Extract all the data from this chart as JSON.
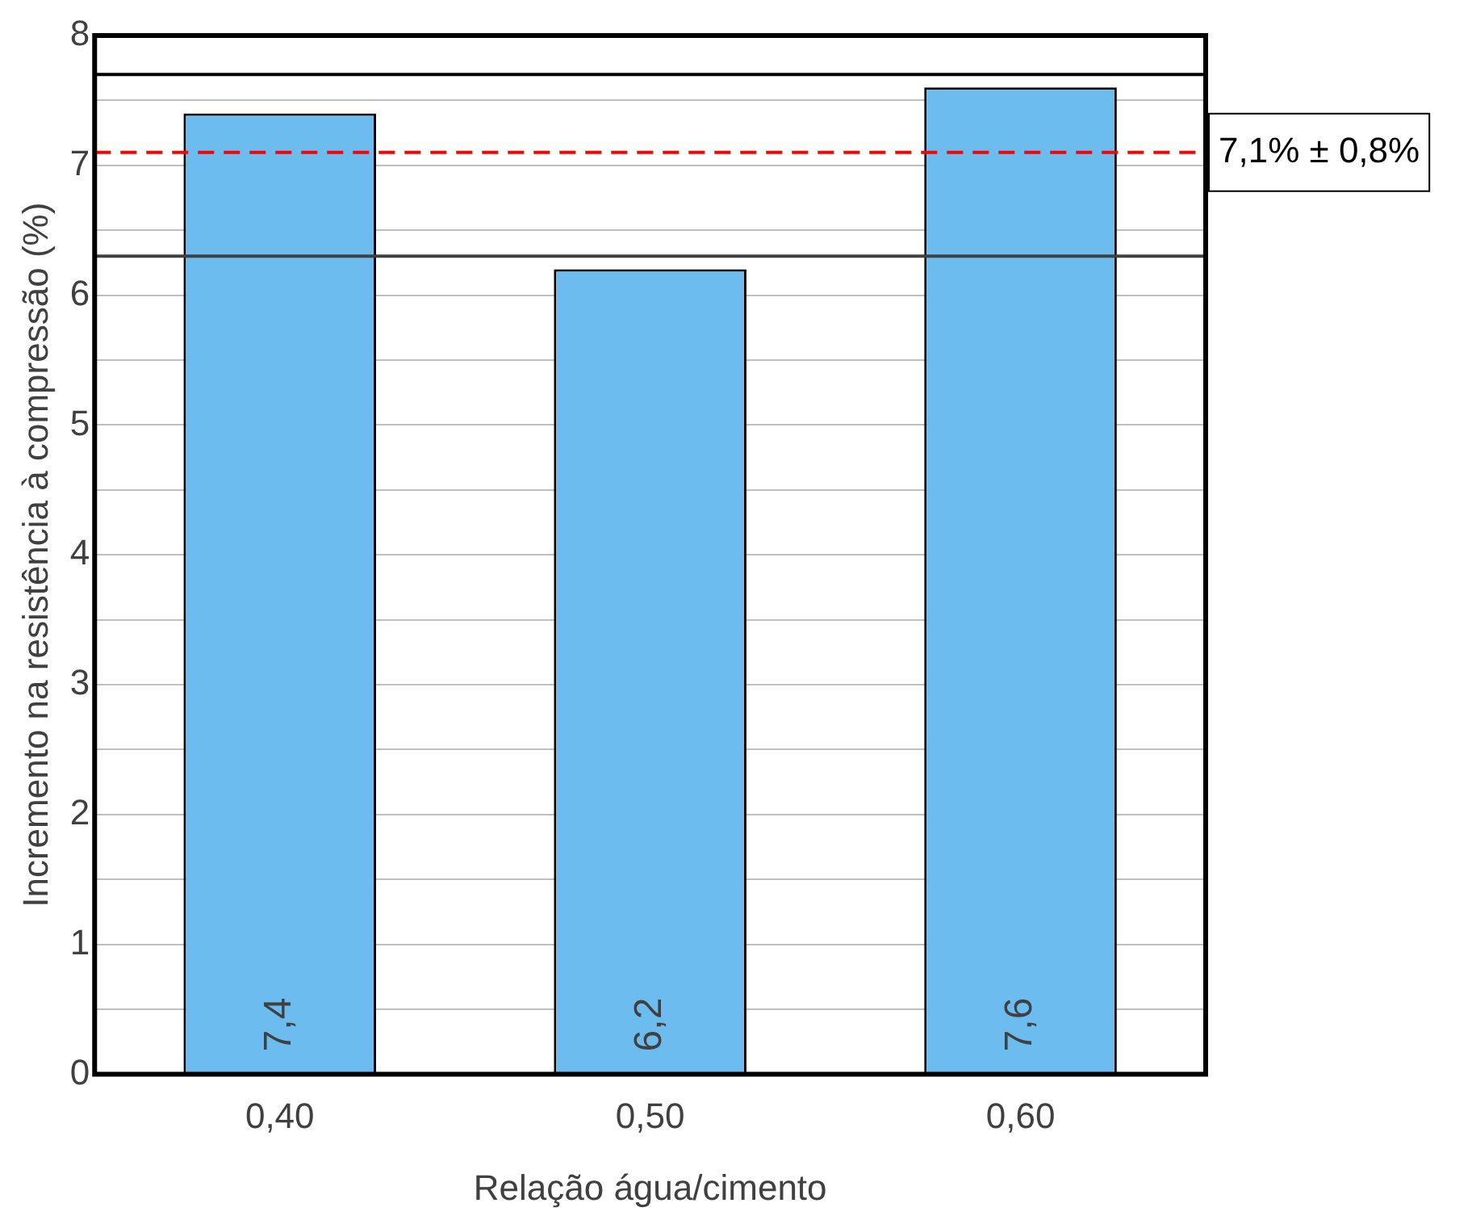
{
  "chart_data": {
    "type": "bar",
    "xlabel": "Relação água/cimento",
    "ylabel": "Incremento na resistência à compressão (%)",
    "categories": [
      "0,40",
      "0,50",
      "0,60"
    ],
    "values": [
      7.4,
      6.2,
      7.6
    ],
    "color": "#6cbcf0",
    "value_labels": [
      "7,4",
      "6,2",
      "7,6"
    ],
    "ylim": [
      0,
      8
    ],
    "yticks": [
      0,
      {
        "value": 0.5,
        "label": null
      },
      1,
      {
        "value": 1.5,
        "label": null
      },
      2,
      {
        "value": 2.5,
        "label": null
      },
      3,
      {
        "value": 3.5,
        "label": null
      },
      4,
      {
        "value": 4.5,
        "label": null
      },
      5,
      {
        "value": 5.5,
        "label": null
      },
      6,
      {
        "value": 6.5,
        "label": null
      },
      7,
      {
        "value": 7.5,
        "label": null
      },
      8
    ],
    "grid": "y",
    "ref_lines": [
      {
        "axis": "y",
        "value": 7.1,
        "label": "7,1% ± 0,8%",
        "color": "#ff0000",
        "line_style": "dashed"
      },
      {
        "axis": "y",
        "value": 7.7,
        "color": "#000000",
        "line_style": "solid"
      },
      {
        "axis": "y",
        "value": 6.3,
        "color": "#404040",
        "line_style": "solid"
      }
    ]
  }
}
